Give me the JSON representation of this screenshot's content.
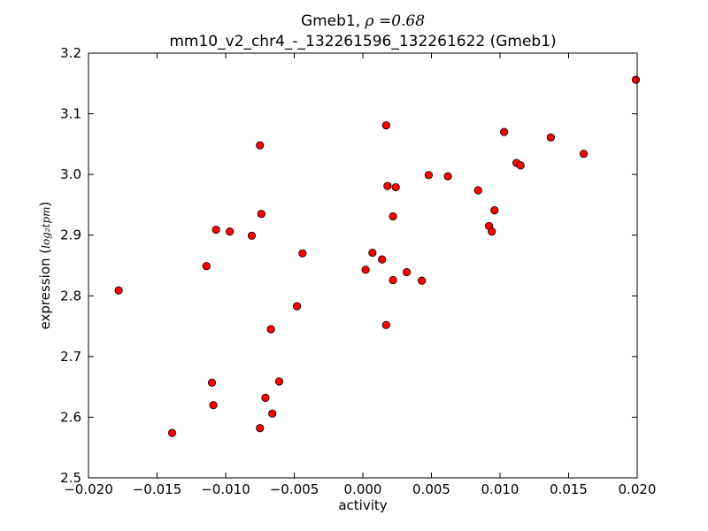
{
  "chart_data": {
    "type": "scatter",
    "title_prefix": "Gmeb1, ",
    "title_math": "ρ =0.68",
    "subtitle": "mm10_v2_chr4_-_132261596_132261622 (Gmeb1)",
    "xlabel": "activity",
    "ylabel_prefix": "expression (",
    "ylabel_math": "log₂tpm",
    "ylabel_suffix": ")",
    "xlim": [
      -0.02,
      0.02
    ],
    "ylim": [
      2.5,
      3.2
    ],
    "xticks": [
      -0.02,
      -0.015,
      -0.01,
      -0.005,
      0.0,
      0.005,
      0.01,
      0.015,
      0.02
    ],
    "xtick_labels": [
      "−0.020",
      "−0.015",
      "−0.010",
      "−0.005",
      "0.000",
      "0.005",
      "0.010",
      "0.015",
      "0.020"
    ],
    "yticks": [
      2.5,
      2.6,
      2.7,
      2.8,
      2.9,
      3.0,
      3.1,
      3.2
    ],
    "ytick_labels": [
      "2.5",
      "2.6",
      "2.7",
      "2.8",
      "2.9",
      "3.0",
      "3.1",
      "3.2"
    ],
    "grid": false,
    "marker_color": "#ff0000",
    "marker_edge": "#000000",
    "points": [
      {
        "x": -0.0178,
        "y": 2.809
      },
      {
        "x": -0.0139,
        "y": 2.574
      },
      {
        "x": -0.0114,
        "y": 2.849
      },
      {
        "x": -0.011,
        "y": 2.657
      },
      {
        "x": -0.0109,
        "y": 2.62
      },
      {
        "x": -0.0107,
        "y": 2.909
      },
      {
        "x": -0.0097,
        "y": 2.906
      },
      {
        "x": -0.0081,
        "y": 2.899
      },
      {
        "x": -0.0075,
        "y": 3.048
      },
      {
        "x": -0.0074,
        "y": 2.935
      },
      {
        "x": -0.0075,
        "y": 2.582
      },
      {
        "x": -0.0071,
        "y": 2.632
      },
      {
        "x": -0.0067,
        "y": 2.745
      },
      {
        "x": -0.0066,
        "y": 2.606
      },
      {
        "x": -0.0061,
        "y": 2.659
      },
      {
        "x": -0.0048,
        "y": 2.783
      },
      {
        "x": -0.0044,
        "y": 2.87
      },
      {
        "x": 0.0002,
        "y": 2.843
      },
      {
        "x": 0.0007,
        "y": 2.871
      },
      {
        "x": 0.0014,
        "y": 2.86
      },
      {
        "x": 0.0017,
        "y": 2.752
      },
      {
        "x": 0.0017,
        "y": 3.081
      },
      {
        "x": 0.0018,
        "y": 2.981
      },
      {
        "x": 0.0022,
        "y": 2.826
      },
      {
        "x": 0.0022,
        "y": 2.931
      },
      {
        "x": 0.0024,
        "y": 2.979
      },
      {
        "x": 0.0032,
        "y": 2.839
      },
      {
        "x": 0.0043,
        "y": 2.825
      },
      {
        "x": 0.0048,
        "y": 2.999
      },
      {
        "x": 0.0062,
        "y": 2.997
      },
      {
        "x": 0.0084,
        "y": 2.974
      },
      {
        "x": 0.0092,
        "y": 2.915
      },
      {
        "x": 0.0094,
        "y": 2.906
      },
      {
        "x": 0.0096,
        "y": 2.941
      },
      {
        "x": 0.0103,
        "y": 3.07
      },
      {
        "x": 0.0112,
        "y": 3.019
      },
      {
        "x": 0.0115,
        "y": 3.015
      },
      {
        "x": 0.0137,
        "y": 3.061
      },
      {
        "x": 0.0161,
        "y": 3.034
      },
      {
        "x": 0.0199,
        "y": 3.156
      }
    ]
  }
}
